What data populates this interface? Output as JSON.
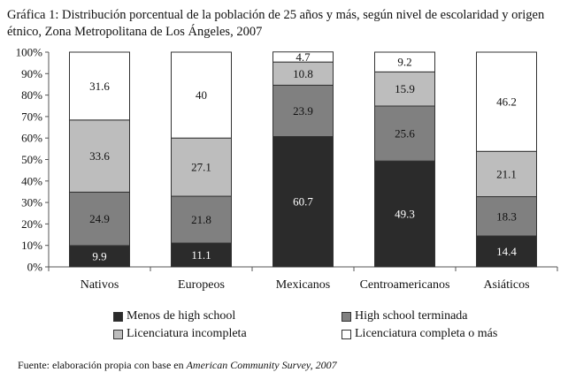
{
  "chart_data": {
    "type": "bar",
    "stacked": true,
    "title": "Gráfica 1: Distribución porcentual de la población de 25 años y más, según nivel de escolaridad y origen étnico, Zona Metropolitana de Los Ángeles, 2007",
    "categories": [
      "Nativos",
      "Europeos",
      "Mexicanos",
      "Centroamericanos",
      "Asiáticos"
    ],
    "series": [
      {
        "name": "Menos de high school",
        "color": "#2b2b2b",
        "label_color": "#ffffff",
        "values": [
          9.9,
          11.1,
          60.7,
          49.3,
          14.4
        ]
      },
      {
        "name": "High school terminada",
        "color": "#808080",
        "label_color": "#111111",
        "values": [
          24.9,
          21.8,
          23.9,
          25.6,
          18.3
        ]
      },
      {
        "name": "Licenciatura incompleta",
        "color": "#bdbdbd",
        "label_color": "#111111",
        "values": [
          33.6,
          27.1,
          10.8,
          15.9,
          21.1
        ]
      },
      {
        "name": "Licenciatura completa o más",
        "color": "#ffffff",
        "label_color": "#111111",
        "values": [
          31.6,
          40,
          4.7,
          9.2,
          46.2
        ]
      }
    ],
    "labels": [
      [
        "9.9",
        "11.1",
        "60.7",
        "49.3",
        "14.4"
      ],
      [
        "24.9",
        "21.8",
        "23.9",
        "25.6",
        "18.3"
      ],
      [
        "33.6",
        "27.1",
        "10.8",
        "15.9",
        "21.1"
      ],
      [
        "31.6",
        "40",
        "4.7",
        "9.2",
        "46.2"
      ]
    ],
    "y_ticks": [
      "0%",
      "10%",
      "20%",
      "30%",
      "40%",
      "50%",
      "60%",
      "70%",
      "80%",
      "90%",
      "100%"
    ],
    "ylim": [
      0,
      100
    ],
    "grid": false,
    "legend_position": "bottom"
  },
  "source": {
    "prefix": "Fuente: elaboración propia con base en ",
    "italic": "American Community Survey, 2007"
  }
}
